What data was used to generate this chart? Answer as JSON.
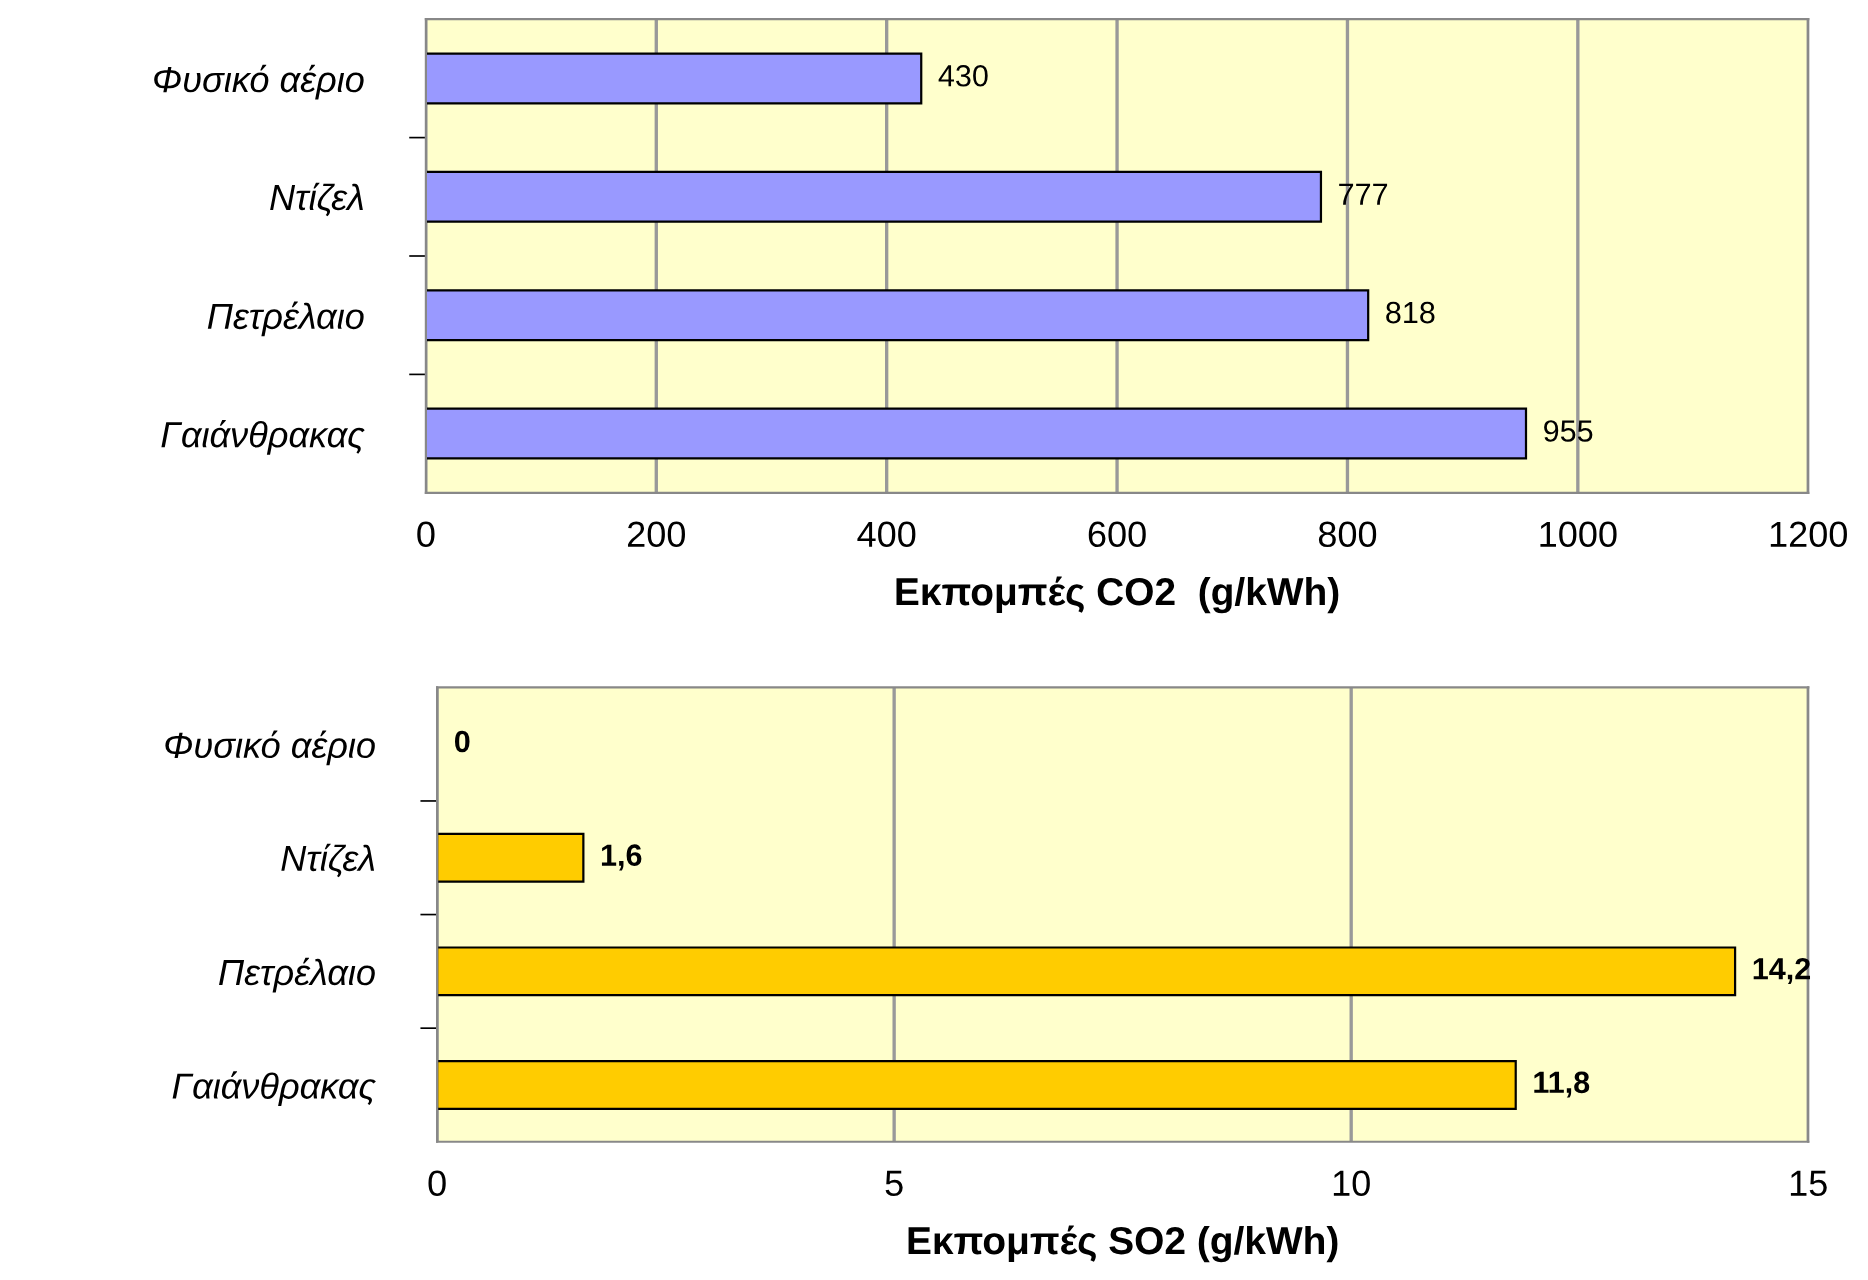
{
  "chart_data": [
    {
      "type": "bar",
      "orientation": "horizontal",
      "categories": [
        "Φυσικό αέριο",
        "Ντίζελ",
        "Πετρέλαιο",
        "Γαιάνθρακας"
      ],
      "values": [
        430,
        777,
        818,
        955
      ],
      "color": "#9999ff",
      "xlim": [
        0,
        1200
      ],
      "xticks": [
        0,
        200,
        400,
        600,
        800,
        1000,
        1200
      ],
      "xlabel": "Εκπομπές CO2  (g/kWh)",
      "grid": "x",
      "data_labels": true
    },
    {
      "type": "bar",
      "orientation": "horizontal",
      "categories": [
        "Φυσικό αέριο",
        "Ντίζελ",
        "Πετρέλαιο",
        "Γαιάνθρακας"
      ],
      "values": [
        0,
        1.6,
        14.2,
        11.8
      ],
      "value_labels": [
        "0",
        "1,6",
        "14,2",
        "11,8"
      ],
      "color": "#ffcc00",
      "xlim": [
        0,
        15
      ],
      "xticks": [
        0,
        5,
        10,
        15
      ],
      "xlabel": "Εκπομπές SO2 (g/kWh)",
      "grid": "x"
    }
  ]
}
